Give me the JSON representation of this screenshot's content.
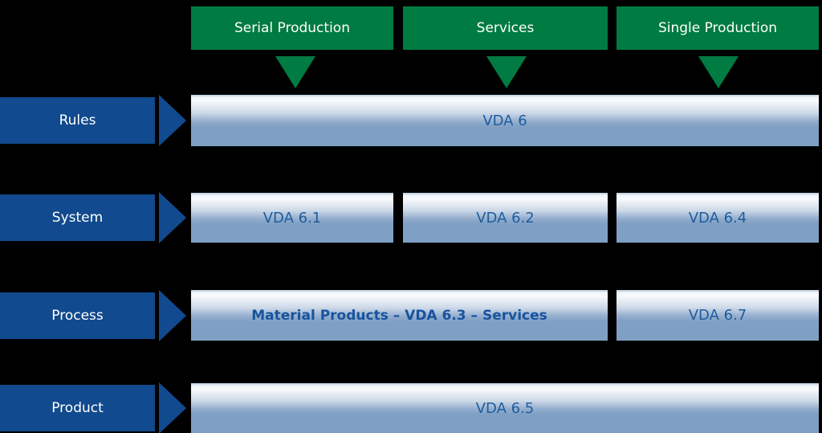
{
  "colors": {
    "bg": "#000000",
    "green": "#007B41",
    "blue": "#114A8E",
    "steel": "#7FA0C4",
    "bar-text": "#1E5C9E",
    "bar-text-bold": "#17539E"
  },
  "header": {
    "columns": [
      {
        "label": "Serial Production"
      },
      {
        "label": "Services"
      },
      {
        "label": "Single Production"
      }
    ]
  },
  "rows": [
    {
      "label": "Rules",
      "boxes": [
        {
          "text": "VDA 6"
        }
      ]
    },
    {
      "label": "System",
      "boxes": [
        {
          "text": "VDA 6.1"
        },
        {
          "text": "VDA 6.2"
        },
        {
          "text": "VDA 6.4"
        }
      ]
    },
    {
      "label": "Process",
      "boxes": [
        {
          "text": "Material Products – VDA 6.3 – Services",
          "bold": true
        },
        {
          "text": "VDA 6.7"
        }
      ]
    },
    {
      "label": "Product",
      "boxes": [
        {
          "text": "VDA 6.5"
        }
      ]
    }
  ]
}
